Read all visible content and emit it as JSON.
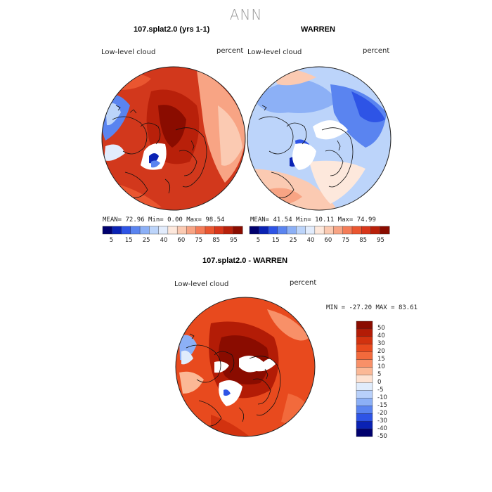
{
  "page": {
    "title": "ANN"
  },
  "panel_left": {
    "title": "107.splat2.0 (yrs 1-1)",
    "variable": "Low-level cloud",
    "units": "percent",
    "mean_label": "MEAN=",
    "mean": "72.96",
    "min_label": "Min=",
    "min": "0.00",
    "max_label": "Max=",
    "max": "98.54"
  },
  "panel_right": {
    "title": "WARREN",
    "variable": "Low-level cloud",
    "units": "percent",
    "mean_label": "MEAN=",
    "mean": "41.54",
    "min_label": "Min=",
    "min": "10.11",
    "max_label": "Max=",
    "max": "74.99"
  },
  "panel_diff": {
    "title": "107.splat2.0 - WARREN",
    "variable": "Low-level cloud",
    "units": "percent",
    "stats": "MIN = -27.20 MAX =  83.61"
  },
  "colorbar_top": {
    "ticks": [
      "5",
      "15",
      "25",
      "40",
      "60",
      "75",
      "85",
      "95"
    ],
    "colors": [
      "#00006e",
      "#0a22b4",
      "#2e54e6",
      "#5a84f0",
      "#8cb0f6",
      "#bcd4fa",
      "#e2ecfc",
      "#fde8dc",
      "#fbcab2",
      "#f8a484",
      "#f47c58",
      "#ea5630",
      "#d8361a",
      "#b8200a",
      "#8a0c00"
    ]
  },
  "colorbar_diff": {
    "ticks": [
      "50",
      "40",
      "30",
      "20",
      "15",
      "10",
      "5",
      "0",
      "-5",
      "-10",
      "-15",
      "-20",
      "-30",
      "-40",
      "-50"
    ],
    "colors": [
      "#8a0c00",
      "#b31c06",
      "#d2320f",
      "#e84a1e",
      "#f26a3c",
      "#f89068",
      "#fbb896",
      "#fde2d2",
      "#e0ecfc",
      "#b8d0fa",
      "#8cb0f6",
      "#5a84f0",
      "#2e54e6",
      "#0a22b4",
      "#00006e"
    ]
  }
}
